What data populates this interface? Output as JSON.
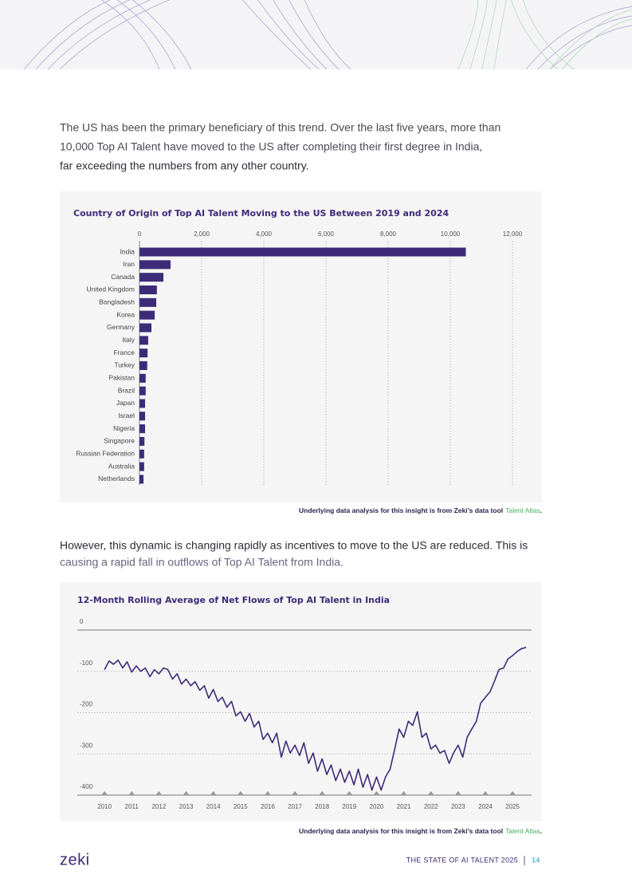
{
  "paragraphs": [
    [
      "The US has been the primary beneficiary of this trend. Over the last five years, more than",
      "10,000 Top AI Talent have moved to the US after completing their first degree in India,",
      "far exceeding the numbers from any other country."
    ],
    [
      "However, this dynamic is changing rapidly as incentives to move to the US are reduced. This is",
      "causing a rapid fall in outflows of Top AI Talent from India."
    ]
  ],
  "chart_data": [
    {
      "type": "bar",
      "orientation": "horizontal",
      "title": "Country of Origin of Top AI Talent Moving to the US Between 2019 and 2024",
      "categories": [
        "India",
        "Iran",
        "Canada",
        "United Kingdom",
        "Bangladesh",
        "Korea",
        "Germany",
        "Italy",
        "France",
        "Turkey",
        "Pakistan",
        "Brazil",
        "Japan",
        "Israel",
        "Nigeria",
        "Singapore",
        "Russian Federation",
        "Australia",
        "Netherlands"
      ],
      "values": [
        10500,
        1000,
        770,
        560,
        540,
        490,
        385,
        280,
        260,
        250,
        200,
        200,
        180,
        180,
        180,
        160,
        150,
        150,
        130
      ],
      "color": "#3d2b78",
      "xlim": [
        0,
        12000
      ],
      "xticks": [
        0,
        {
          "value": 2000,
          "label": "2,000"
        },
        {
          "value": 4000,
          "label": "4,000"
        },
        {
          "value": 6000,
          "label": "6,000"
        },
        {
          "value": 8000,
          "label": "8,000"
        },
        {
          "value": 10000,
          "label": "10,000"
        },
        {
          "value": 12000,
          "label": "12,000"
        }
      ],
      "grid": true
    },
    {
      "type": "line",
      "title": "12-Month Rolling Average of Net Flows of Top AI Talent in India",
      "x": [
        2010,
        2010.17,
        2010.33,
        2010.5,
        2010.67,
        2010.83,
        2011,
        2011.17,
        2011.33,
        2011.5,
        2011.67,
        2011.83,
        2012,
        2012.17,
        2012.33,
        2012.5,
        2012.67,
        2012.83,
        2013,
        2013.17,
        2013.33,
        2013.5,
        2013.67,
        2013.83,
        2014,
        2014.17,
        2014.33,
        2014.5,
        2014.67,
        2014.83,
        2015,
        2015.17,
        2015.33,
        2015.5,
        2015.67,
        2015.83,
        2016,
        2016.17,
        2016.33,
        2016.5,
        2016.67,
        2016.83,
        2017,
        2017.17,
        2017.33,
        2017.5,
        2017.67,
        2017.83,
        2018,
        2018.17,
        2018.33,
        2018.5,
        2018.67,
        2018.83,
        2019,
        2019.17,
        2019.33,
        2019.5,
        2019.67,
        2019.83,
        2020,
        2020.17,
        2020.33,
        2020.5,
        2020.67,
        2020.83,
        2021,
        2021.17,
        2021.33,
        2021.5,
        2021.67,
        2021.83,
        2022,
        2022.17,
        2022.33,
        2022.5,
        2022.67,
        2022.83,
        2023,
        2023.17,
        2023.33,
        2023.5,
        2023.67,
        2023.83,
        2024,
        2024.17,
        2024.33,
        2024.5,
        2024.67,
        2024.83,
        2025,
        2025.17,
        2025.33,
        2025.5
      ],
      "values": [
        -96,
        -75,
        -83,
        -73,
        -92,
        -77,
        -102,
        -87,
        -100,
        -92,
        -113,
        -96,
        -106,
        -92,
        -96,
        -119,
        -106,
        -131,
        -119,
        -135,
        -125,
        -146,
        -135,
        -165,
        -144,
        -173,
        -163,
        -187,
        -173,
        -208,
        -198,
        -221,
        -202,
        -235,
        -221,
        -265,
        -250,
        -273,
        -250,
        -308,
        -269,
        -298,
        -279,
        -304,
        -273,
        -323,
        -298,
        -342,
        -312,
        -350,
        -327,
        -365,
        -337,
        -369,
        -342,
        -375,
        -337,
        -381,
        -350,
        -388,
        -356,
        -388,
        -356,
        -337,
        -288,
        -240,
        -260,
        -221,
        -231,
        -198,
        -260,
        -250,
        -288,
        -279,
        -298,
        -292,
        -323,
        -298,
        -279,
        -308,
        -260,
        -240,
        -221,
        -177,
        -163,
        -150,
        -125,
        -96,
        -92,
        -70,
        -62,
        -52,
        -45,
        -42
      ],
      "color": "#3d2b78",
      "xlim": [
        2009,
        2025.7
      ],
      "xticks": [
        2010,
        2011,
        2012,
        2013,
        2014,
        2015,
        2016,
        2017,
        2018,
        2019,
        2020,
        2021,
        2022,
        2023,
        2024,
        2025
      ],
      "ylim": [
        -400,
        0
      ],
      "yticks": [
        0,
        -100,
        -200,
        -300,
        -400
      ],
      "grid": true
    }
  ],
  "source_note": [
    "Underlying data analysis for this insight is from Zeki’s data tool",
    "Talent Atlas",
    "."
  ],
  "footer": {
    "logo": "zeki",
    "report": "THE STATE OF AI TALENT 2025",
    "page": "14"
  }
}
